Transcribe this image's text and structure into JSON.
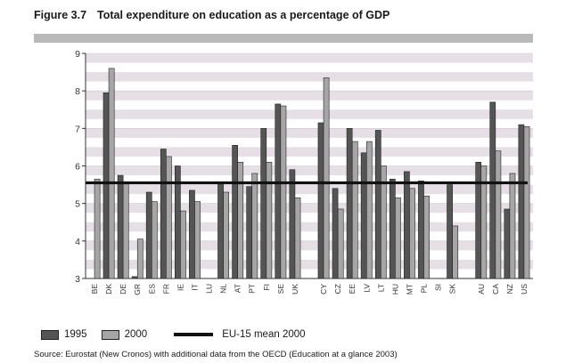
{
  "figure": {
    "number": "Figure 3.7",
    "title": "Total expenditure on education as a percentage of GDP",
    "source": "Source: Eurostat (New Cronos) with additional data from the OECD (Education at a glance 2003)"
  },
  "legend": {
    "series1": "1995",
    "series2": "2000",
    "mean": "EU-15 mean 2000"
  },
  "colors": {
    "series1": "#555555",
    "series2": "#a6a6a6",
    "mean": "#111111",
    "band": "#e6dfe6",
    "header_band": "#b9b9b9"
  },
  "chart_data": {
    "type": "bar",
    "title": "Total expenditure on education as a percentage of GDP",
    "ylim": [
      3,
      9
    ],
    "yticks": [
      3,
      4,
      5,
      6,
      7,
      8,
      9
    ],
    "grid": true,
    "legend_position": "bottom",
    "mean_line": {
      "name": "EU-15 mean 2000",
      "value": 5.55
    },
    "categories": [
      "BE",
      "DK",
      "DE",
      "GR",
      "ES",
      "FR",
      "IE",
      "IT",
      "LU",
      "NL",
      "AT",
      "PT",
      "FI",
      "SE",
      "UK",
      "CY",
      "CZ",
      "EE",
      "LV",
      "LT",
      "HU",
      "MT",
      "PL",
      "SI",
      "SK",
      "AU",
      "CA",
      "NZ",
      "US"
    ],
    "groups": [
      15,
      10,
      4
    ],
    "series": [
      {
        "name": "1995",
        "values": [
          null,
          7.95,
          5.75,
          3.05,
          5.3,
          6.45,
          6.0,
          5.35,
          null,
          5.55,
          6.55,
          5.45,
          7.0,
          7.65,
          5.9,
          7.15,
          5.4,
          7.0,
          6.35,
          6.95,
          5.65,
          5.85,
          5.6,
          null,
          5.5,
          6.1,
          7.7,
          4.85,
          7.1
        ]
      },
      {
        "name": "2000",
        "values": [
          5.65,
          8.6,
          5.55,
          4.05,
          5.05,
          6.25,
          4.8,
          5.05,
          null,
          5.3,
          6.1,
          5.8,
          6.1,
          7.6,
          5.15,
          8.35,
          4.85,
          6.65,
          6.65,
          6.0,
          5.15,
          5.4,
          5.2,
          null,
          4.4,
          6.0,
          6.4,
          5.8,
          7.05
        ]
      }
    ]
  }
}
